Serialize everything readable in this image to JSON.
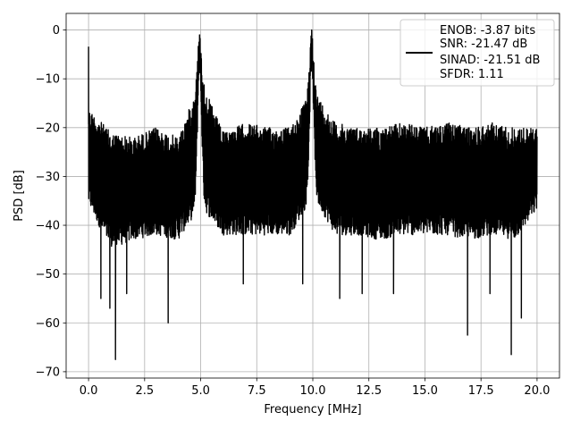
{
  "chart_data": {
    "type": "line",
    "xlabel": "Frequency [MHz]",
    "ylabel": "PSD [dB]",
    "xlim": [
      -1.0,
      21.0
    ],
    "ylim": [
      -71.3,
      3.4
    ],
    "grid": true,
    "legend_position": "top-right",
    "xticks": [
      0.0,
      2.5,
      5.0,
      7.5,
      10.0,
      12.5,
      15.0,
      17.5,
      20.0
    ],
    "xtick_labels": [
      "0.0",
      "2.5",
      "5.0",
      "7.5",
      "10.0",
      "12.5",
      "15.0",
      "17.5",
      "20.0"
    ],
    "yticks": [
      0,
      -10,
      -20,
      -30,
      -40,
      -50,
      -60,
      -70
    ],
    "ytick_labels": [
      "0",
      "−10",
      "−20",
      "−30",
      "−40",
      "−50",
      "−60",
      "−70"
    ],
    "line_color": "#000000",
    "legend": {
      "entries": [
        "ENOB: -3.87 bits",
        "SNR: -21.47 dB",
        "SINAD: -21.51 dB",
        "SFDR: 1.11"
      ]
    },
    "series": [
      {
        "x_start": 0.0,
        "x_end": 20.0,
        "noise_band": [
          {
            "x": 0.0,
            "upper": -16,
            "lower": -36
          },
          {
            "x": 1.0,
            "upper": -21,
            "lower": -45
          },
          {
            "x": 2.0,
            "upper": -22,
            "lower": -43
          },
          {
            "x": 3.0,
            "upper": -20,
            "lower": -42
          },
          {
            "x": 4.0,
            "upper": -22,
            "lower": -43
          },
          {
            "x": 5.0,
            "upper": -10,
            "lower": -36
          },
          {
            "x": 6.0,
            "upper": -21,
            "lower": -42
          },
          {
            "x": 7.0,
            "upper": -19,
            "lower": -42
          },
          {
            "x": 8.0,
            "upper": -20,
            "lower": -42
          },
          {
            "x": 9.0,
            "upper": -20,
            "lower": -42
          },
          {
            "x": 10.0,
            "upper": -12,
            "lower": -34
          },
          {
            "x": 11.0,
            "upper": -19,
            "lower": -42
          },
          {
            "x": 12.0,
            "upper": -20,
            "lower": -42
          },
          {
            "x": 13.0,
            "upper": -20,
            "lower": -43
          },
          {
            "x": 14.0,
            "upper": -19,
            "lower": -42
          },
          {
            "x": 15.0,
            "upper": -20,
            "lower": -42
          },
          {
            "x": 16.0,
            "upper": -19,
            "lower": -42
          },
          {
            "x": 17.0,
            "upper": -20,
            "lower": -43
          },
          {
            "x": 18.0,
            "upper": -19,
            "lower": -42
          },
          {
            "x": 19.0,
            "upper": -20,
            "lower": -43
          },
          {
            "x": 20.0,
            "upper": -20,
            "lower": -37
          }
        ],
        "peaks": [
          {
            "x": 0.0,
            "y": -3.5
          },
          {
            "x": 4.95,
            "y": -1.0
          },
          {
            "x": 9.95,
            "y": 0.0
          }
        ],
        "dips": [
          {
            "x": 0.55,
            "y": -55
          },
          {
            "x": 0.95,
            "y": -57
          },
          {
            "x": 1.2,
            "y": -67.5
          },
          {
            "x": 1.7,
            "y": -54
          },
          {
            "x": 3.55,
            "y": -60
          },
          {
            "x": 6.9,
            "y": -52
          },
          {
            "x": 9.55,
            "y": -52
          },
          {
            "x": 11.2,
            "y": -55
          },
          {
            "x": 12.2,
            "y": -54
          },
          {
            "x": 13.6,
            "y": -54
          },
          {
            "x": 16.9,
            "y": -62.5
          },
          {
            "x": 17.9,
            "y": -54
          },
          {
            "x": 18.85,
            "y": -66.5
          },
          {
            "x": 19.3,
            "y": -59
          }
        ]
      }
    ]
  }
}
